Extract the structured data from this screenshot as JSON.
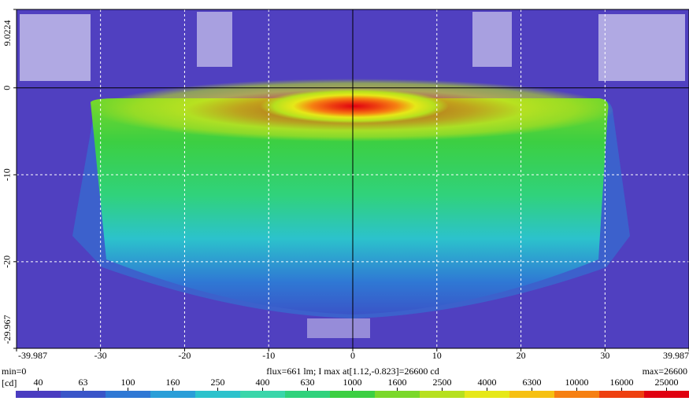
{
  "chart_data": {
    "type": "heatmap",
    "xlim": [
      -39.987,
      39.987
    ],
    "ylim": [
      -29.967,
      9.0224
    ],
    "xticks": [
      -39.987,
      -30,
      -20,
      -10,
      0,
      10,
      20,
      30,
      39.987
    ],
    "yticks": [
      9.0224,
      0,
      -10,
      -20,
      -29.967
    ],
    "grid": true,
    "background": "#5040c0",
    "annotations": [
      "min=0",
      "flux=661 lm; I max at[1.12,-0.823]=26600 cd",
      "max=26600"
    ],
    "colorbar": {
      "label": "[cd]",
      "levels": [
        40,
        63,
        100,
        160,
        250,
        400,
        630,
        1000,
        1600,
        2500,
        4000,
        6300,
        10000,
        16000,
        25000
      ],
      "colors": [
        "#4a3cc0",
        "#3a55c8",
        "#2f78d4",
        "#2a9ed8",
        "#2cc2cc",
        "#3ad6aa",
        "#30d27c",
        "#3ccf42",
        "#7ad82a",
        "#b6e01e",
        "#e6e818",
        "#f6c012",
        "#f68012",
        "#ee4010",
        "#e00010"
      ]
    }
  }
}
